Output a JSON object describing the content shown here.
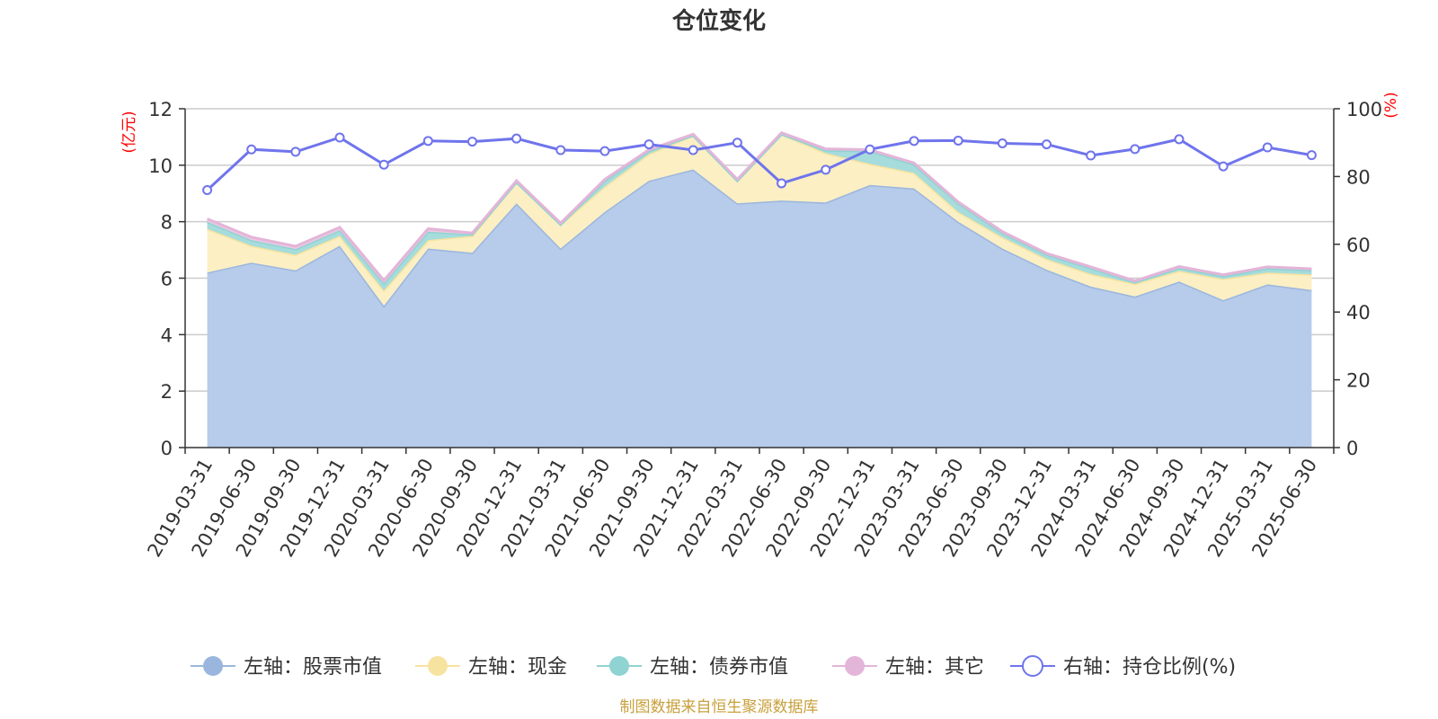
{
  "chart_data": {
    "type": "area",
    "title": "仓位变化",
    "left_axis_unit": "(亿元)",
    "right_axis_unit": "(%)",
    "ylim_left": [
      0,
      12
    ],
    "yticks_left": [
      0,
      2,
      4,
      6,
      8,
      10,
      12
    ],
    "ylim_right": [
      0,
      100
    ],
    "yticks_right": [
      0,
      20,
      40,
      60,
      80,
      100
    ],
    "grid": true,
    "stacked": true,
    "legend_position": "bottom",
    "categories": [
      "2019-03-31",
      "2019-06-30",
      "2019-09-30",
      "2019-12-31",
      "2020-03-31",
      "2020-06-30",
      "2020-09-30",
      "2020-12-31",
      "2021-03-31",
      "2021-06-30",
      "2021-09-30",
      "2021-12-31",
      "2022-03-31",
      "2022-06-30",
      "2022-09-30",
      "2022-12-31",
      "2023-03-31",
      "2023-06-30",
      "2023-09-30",
      "2023-12-31",
      "2024-03-31",
      "2024-06-30",
      "2024-09-30",
      "2024-12-31",
      "2025-03-31",
      "2025-06-30"
    ],
    "series": [
      {
        "name": "左轴：股票市值",
        "axis": "left",
        "color": "#9bb6de",
        "fill": "#b7cbea",
        "values": [
          6.2,
          6.55,
          6.28,
          7.15,
          5.02,
          7.05,
          6.9,
          8.65,
          7.05,
          8.35,
          9.45,
          9.85,
          8.65,
          8.75,
          8.68,
          9.3,
          9.18,
          8.0,
          7.05,
          6.3,
          5.7,
          5.35,
          5.88,
          5.22,
          5.78,
          5.58
        ]
      },
      {
        "name": "左轴：现金",
        "axis": "left",
        "color": "#f7e3a0",
        "fill": "#fbefc3",
        "values": [
          1.55,
          0.6,
          0.55,
          0.35,
          0.55,
          0.3,
          0.6,
          0.75,
          0.85,
          0.9,
          0.95,
          1.2,
          0.8,
          2.35,
          1.75,
          0.75,
          0.55,
          0.35,
          0.4,
          0.38,
          0.45,
          0.45,
          0.38,
          0.75,
          0.42,
          0.55
        ]
      },
      {
        "name": "左轴：债券市值",
        "axis": "left",
        "color": "#8fd3d2",
        "fill": "#a6dcdb",
        "values": [
          0.25,
          0.2,
          0.2,
          0.2,
          0.25,
          0.3,
          0.05,
          0.0,
          0.0,
          0.2,
          0.1,
          0.0,
          0.0,
          0.0,
          0.1,
          0.45,
          0.3,
          0.3,
          0.15,
          0.15,
          0.2,
          0.05,
          0.1,
          0.1,
          0.15,
          0.15
        ]
      },
      {
        "name": "左轴：其它",
        "axis": "left",
        "color": "#e3b5d8",
        "fill": "#edc9e3",
        "values": [
          0.1,
          0.1,
          0.1,
          0.1,
          0.1,
          0.1,
          0.05,
          0.05,
          0.05,
          0.05,
          0.05,
          0.05,
          0.05,
          0.05,
          0.05,
          0.05,
          0.05,
          0.05,
          0.05,
          0.05,
          0.05,
          0.05,
          0.05,
          0.05,
          0.05,
          0.05
        ]
      },
      {
        "name": "右轴：持仓比例(%)",
        "axis": "right",
        "color": "#6f74ec",
        "values": [
          76.0,
          88.0,
          87.3,
          91.5,
          83.5,
          90.5,
          90.3,
          91.2,
          87.8,
          87.5,
          89.5,
          87.8,
          90.0,
          78.0,
          82.0,
          88.0,
          90.5,
          90.6,
          89.8,
          89.5,
          86.2,
          88.1,
          91.0,
          83.0,
          88.6,
          86.3
        ]
      }
    ]
  },
  "credit": "制图数据来自恒生聚源数据库"
}
